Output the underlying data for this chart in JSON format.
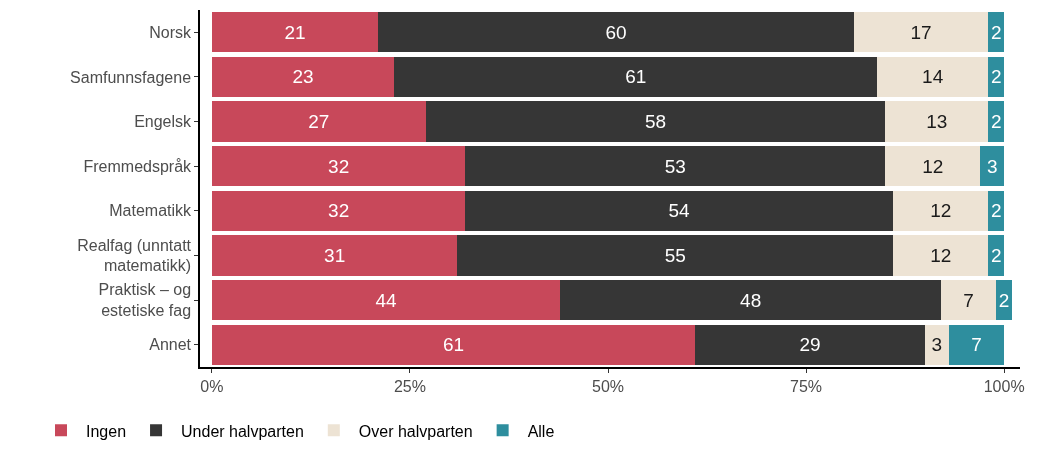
{
  "chart_data": {
    "type": "bar",
    "orientation": "horizontal",
    "stacked": true,
    "data_labels": true,
    "grid": false,
    "legend": "bottom",
    "categories": [
      "Norsk",
      "Samfunnsfagene",
      "Engelsk",
      "Fremmedspråk",
      "Matematikk",
      "Realfag (unntatt matematikk)",
      "Praktisk – og estetiske fag",
      "Annet"
    ],
    "series": [
      {
        "name": "Ingen",
        "color": "#c8485a",
        "values": [
          21,
          23,
          27,
          32,
          32,
          31,
          44,
          61
        ]
      },
      {
        "name": "Under halvparten",
        "color": "#363636",
        "values": [
          60,
          61,
          58,
          53,
          54,
          55,
          48,
          29
        ]
      },
      {
        "name": "Over halvparten",
        "color": "#ede3d4",
        "values": [
          17,
          14,
          13,
          12,
          12,
          12,
          7,
          3
        ]
      },
      {
        "name": "Alle",
        "color": "#2e8e9e",
        "values": [
          2,
          2,
          2,
          3,
          2,
          2,
          2,
          7
        ]
      }
    ],
    "xlim": [
      -1.5,
      102
    ],
    "xticks": [
      {
        "value": 0,
        "label": "0%"
      },
      {
        "value": 25,
        "label": "25%"
      },
      {
        "value": 50,
        "label": "50%"
      },
      {
        "value": 75,
        "label": "75%"
      },
      {
        "value": 100,
        "label": "100%"
      }
    ]
  }
}
